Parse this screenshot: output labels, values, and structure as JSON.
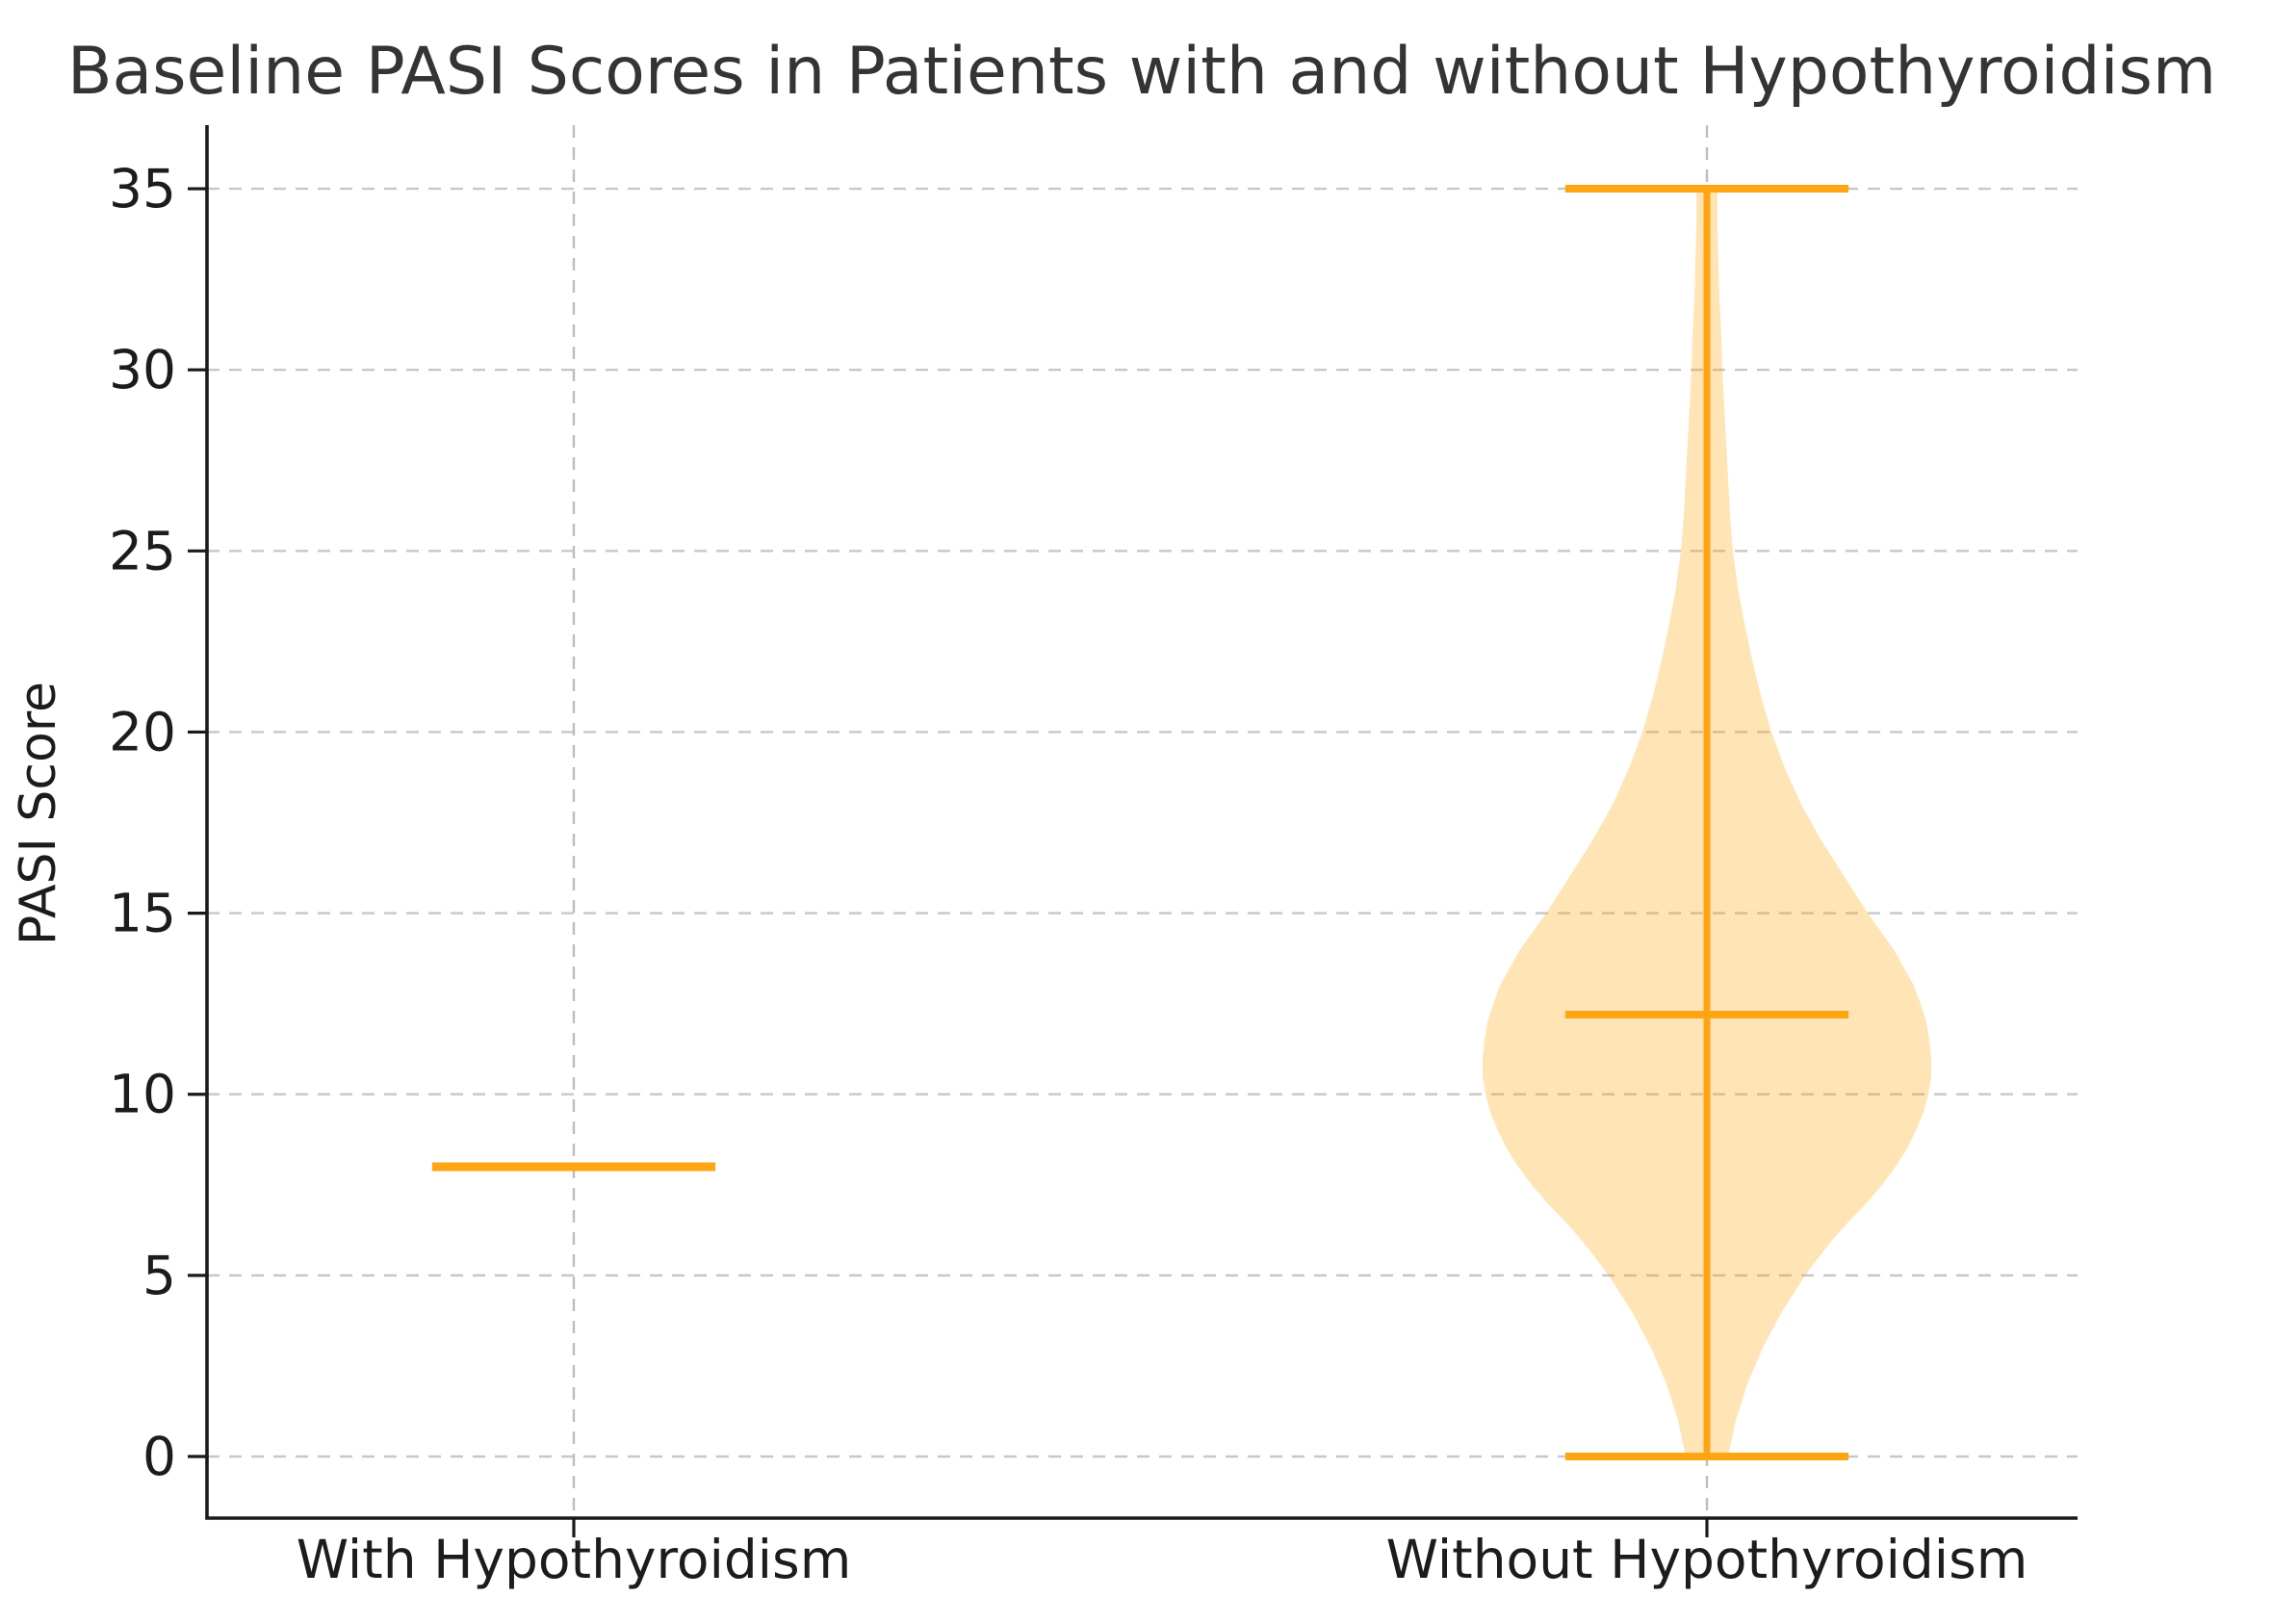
{
  "title": "Baseline PASI Scores in Patients with and without Hypothyroidism",
  "ylabel": "PASI Score",
  "chart_data": {
    "type": "violin",
    "title": "Baseline PASI Scores in Patients with and without Hypothyroidism",
    "xlabel": "",
    "ylabel": "PASI Score",
    "categories": [
      "With Hypothyroidism",
      "Without Hypothyroidism"
    ],
    "yticks": [
      0,
      5,
      10,
      15,
      20,
      25,
      30,
      35
    ],
    "ytick_labels": [
      "0",
      "5",
      "10",
      "15",
      "20",
      "25",
      "30",
      "35"
    ],
    "ylim": [
      -1.7,
      36.8
    ],
    "grid": {
      "horizontal_dashed_at_each_ytick": true,
      "vertical_dashed_at_each_category": true
    },
    "legend": "none",
    "groups": [
      {
        "label": "With Hypothyroidism",
        "display": "degenerate violin: single horizontal line (all mass at one value)",
        "value": 8,
        "line_halfwidth_units": 0.125
      },
      {
        "label": "Without Hypothyroidism",
        "display": "violin with min/max whisker caps, vertical stem and mean line",
        "min": 0,
        "max": 35,
        "mean": 12.2,
        "whisker_halfwidth_units": 0.125,
        "violin_profile_value_halfwidth": [
          [
            35,
            0.0093
          ],
          [
            34,
            0.0093
          ],
          [
            33,
            0.0102
          ],
          [
            32,
            0.011
          ],
          [
            31,
            0.0127
          ],
          [
            30,
            0.0136
          ],
          [
            29,
            0.0153
          ],
          [
            28,
            0.017
          ],
          [
            27,
            0.0187
          ],
          [
            26,
            0.0204
          ],
          [
            25,
            0.0229
          ],
          [
            24,
            0.0272
          ],
          [
            23,
            0.0331
          ],
          [
            22,
            0.0399
          ],
          [
            21,
            0.0476
          ],
          [
            20,
            0.0569
          ],
          [
            19,
            0.0688
          ],
          [
            18,
            0.0833
          ],
          [
            17,
            0.1011
          ],
          [
            16,
            0.1215
          ],
          [
            15,
            0.1419
          ],
          [
            14,
            0.1648
          ],
          [
            13,
            0.1827
          ],
          [
            12.5,
            0.1886
          ],
          [
            12,
            0.1937
          ],
          [
            11.5,
            0.1963
          ],
          [
            11,
            0.198
          ],
          [
            10.5,
            0.198
          ],
          [
            10,
            0.1954
          ],
          [
            9.5,
            0.1912
          ],
          [
            9,
            0.1844
          ],
          [
            8.5,
            0.1767
          ],
          [
            8,
            0.1665
          ],
          [
            7.5,
            0.1546
          ],
          [
            7,
            0.141
          ],
          [
            6.5,
            0.1257
          ],
          [
            6,
            0.1113
          ],
          [
            5.5,
            0.0986
          ],
          [
            5,
            0.0867
          ],
          [
            4.5,
            0.0765
          ],
          [
            4,
            0.0663
          ],
          [
            3.5,
            0.0578
          ],
          [
            3,
            0.0493
          ],
          [
            2.5,
            0.0425
          ],
          [
            2,
            0.0357
          ],
          [
            1.5,
            0.0306
          ],
          [
            1,
            0.0255
          ],
          [
            0.5,
            0.0221
          ],
          [
            0,
            0.0187
          ]
        ]
      }
    ],
    "colors": {
      "violin_line": "#FFA513",
      "violin_fill": "rgba(255,165,0,0.29)",
      "gridline": "#c7c7c7",
      "spine": "#1a1a1a",
      "text": "#1c1c1c",
      "title": "#343434"
    }
  }
}
